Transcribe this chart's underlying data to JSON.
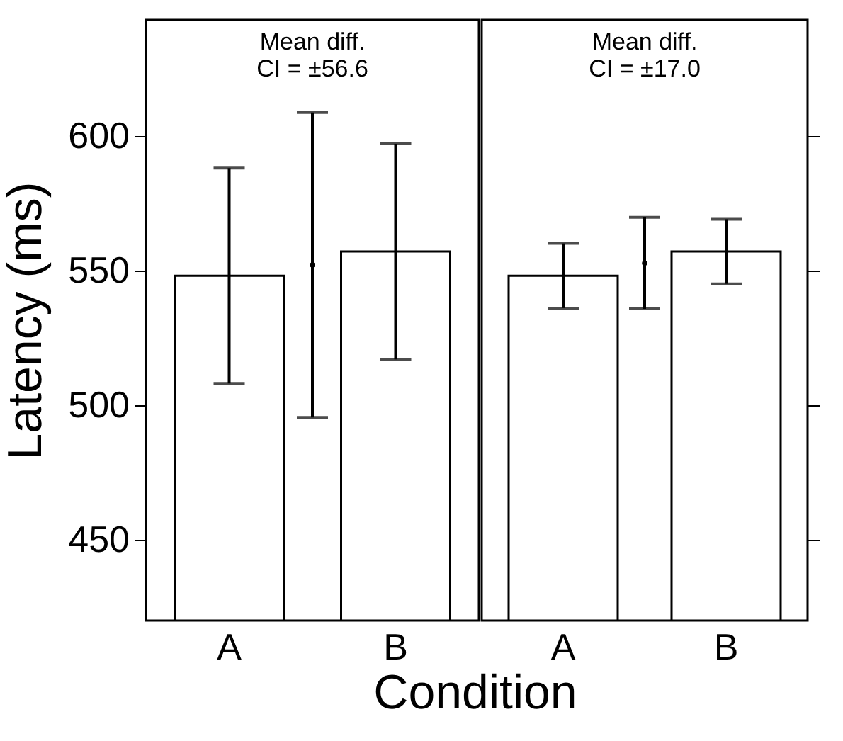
{
  "chart_data": [
    {
      "type": "bar",
      "categories": [
        "A",
        null,
        "B"
      ],
      "xlabel": "Condition",
      "ylabel": "Latency (ms)",
      "ylim": [
        420,
        643
      ],
      "yticks": [
        450,
        500,
        550,
        600
      ],
      "grid": false,
      "annotations": [
        "Mean diff.\nCI = ±56.6"
      ],
      "series": [
        {
          "type": "bar",
          "color": "#ffffff",
          "values": [
            548,
            null,
            557
          ],
          "errors": [
            40,
            null,
            40
          ]
        },
        {
          "type": "scatter",
          "marker": "circle",
          "color": "#000000",
          "values": [
            null,
            552,
            null
          ],
          "errors": [
            null,
            56.6,
            null
          ]
        }
      ]
    },
    {
      "type": "bar",
      "categories": [
        "A",
        null,
        "B"
      ],
      "ylim": [
        420,
        643
      ],
      "yticks": [
        450,
        500,
        550,
        600
      ],
      "tick_labels": "x",
      "grid": false,
      "annotations": [
        "Mean diff.\nCI = ±17.0"
      ],
      "series": [
        {
          "type": "bar",
          "color": "#ffffff",
          "values": [
            548,
            null,
            557
          ],
          "errors": [
            12,
            null,
            12
          ]
        },
        {
          "type": "scatter",
          "marker": "circle",
          "color": "#000000",
          "values": [
            null,
            552.7,
            null
          ],
          "errors": [
            null,
            17.0,
            null
          ]
        }
      ]
    }
  ]
}
